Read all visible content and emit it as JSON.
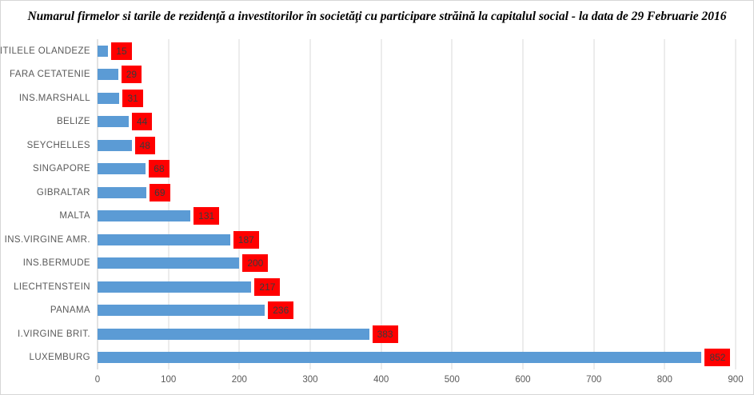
{
  "chart_data": {
    "type": "bar",
    "orientation": "horizontal",
    "title": "Numarul firmelor si tarile de rezidenţă a investitorilor în societăţi cu participare străină la capitalul social - la data de 29 Februarie 2016",
    "categories": [
      "ANTILELE OLANDEZE",
      "FARA CETATENIE",
      "INS.MARSHALL",
      "BELIZE",
      "SEYCHELLES",
      "SINGAPORE",
      "GIBRALTAR",
      "MALTA",
      "INS.VIRGINE AMR.",
      "INS.BERMUDE",
      "LIECHTENSTEIN",
      "PANAMA",
      "I.VIRGINE BRIT.",
      "LUXEMBURG"
    ],
    "values": [
      15,
      29,
      31,
      44,
      48,
      68,
      69,
      131,
      187,
      200,
      217,
      236,
      383,
      852
    ],
    "xlabel": "",
    "ylabel": "",
    "xlim": [
      0,
      900
    ],
    "x_ticks": [
      0,
      100,
      200,
      300,
      400,
      500,
      600,
      700,
      800,
      900
    ],
    "grid": true,
    "legend": false,
    "value_labels_position": "outside-end",
    "colors": {
      "bar": "#5b9bd5",
      "value_label_bg": "#ff0000",
      "value_label_text": "#3a3a3a",
      "axis_text": "#595959",
      "gridline": "#d9d9d9",
      "title_text": "#000000"
    }
  }
}
